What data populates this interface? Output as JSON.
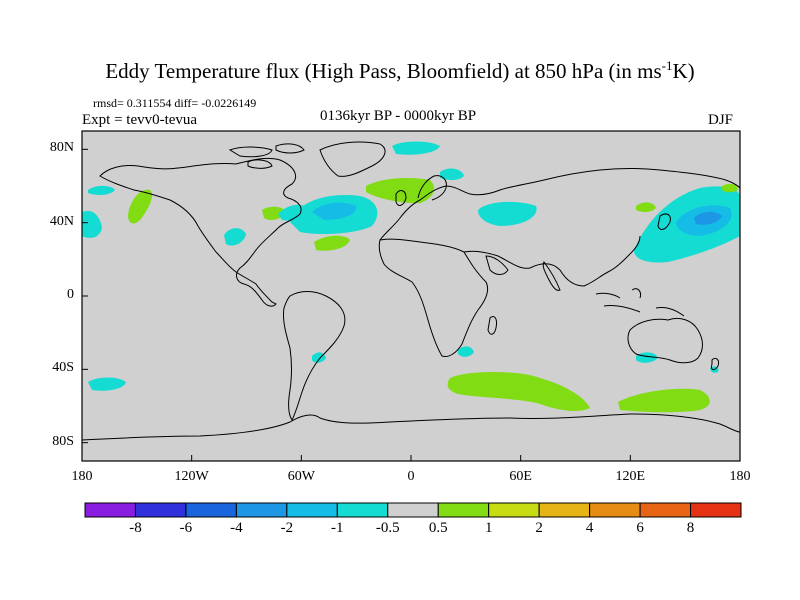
{
  "title_main": "Eddy Temperature flux (High Pass, Bloomfield) at 850 hPa (in ms",
  "title_sup": "-1",
  "title_end": "K)",
  "stats": "rmsd= 0.311554 diff= -0.0226149",
  "experiment": "Expt = tevv0-tevua",
  "period": "0136kyr BP - 0000kyr BP",
  "season": "DJF",
  "colors": {
    "land_sea_fill": "#d0d0d0",
    "coastline": "#000000"
  },
  "chart_data": {
    "type": "heatmap",
    "projection": "cylindrical equidistant",
    "x_ticks": [
      "180",
      "120W",
      "60W",
      "0",
      "60E",
      "120E",
      "180"
    ],
    "y_ticks": [
      "80N",
      "40N",
      "0",
      "40S",
      "80S"
    ],
    "xlim": [
      -180,
      180
    ],
    "ylim": [
      -90,
      90
    ],
    "colorbar": {
      "labels": [
        "-8",
        "-6",
        "-4",
        "-2",
        "-1",
        "-0.5",
        "0.5",
        "1",
        "2",
        "4",
        "6",
        "8"
      ],
      "colors": [
        "#8a1ee0",
        "#3030dc",
        "#1a64dc",
        "#1e96e6",
        "#14bce6",
        "#14dcd2",
        "#d0d0d0",
        "#82dc14",
        "#c8dc14",
        "#e6b414",
        "#e68c14",
        "#e66414",
        "#e63214"
      ]
    },
    "anomaly_regions": [
      {
        "lon": -168,
        "lat": 48,
        "value": "0.5 to 1"
      },
      {
        "lon": -175,
        "lat": 40,
        "value": "-0.5 to -1"
      },
      {
        "lon": -160,
        "lat": 57,
        "value": "-0.5 to -1"
      },
      {
        "lon": -175,
        "lat": -47,
        "value": "-0.5 to -1"
      },
      {
        "lon": -95,
        "lat": 45,
        "value": "0.5 to 1"
      },
      {
        "lon": -70,
        "lat": 48,
        "value": "-0.5 to -1"
      },
      {
        "lon": -90,
        "lat": 35,
        "value": "-0.5 to -1"
      },
      {
        "lon": -45,
        "lat": 45,
        "value": "-1 to -2"
      },
      {
        "lon": -35,
        "lat": 30,
        "value": "0.5 to 1"
      },
      {
        "lon": -5,
        "lat": 60,
        "value": "0.5 to 1"
      },
      {
        "lon": 0,
        "lat": 82,
        "value": "-0.5 to -1"
      },
      {
        "lon": 45,
        "lat": 45,
        "value": "-0.5 to -1"
      },
      {
        "lon": 50,
        "lat": -45,
        "value": "0.5 to 1"
      },
      {
        "lon": 130,
        "lat": -52,
        "value": "0.5 to 1"
      },
      {
        "lon": 145,
        "lat": 40,
        "value": "-2 to -4"
      },
      {
        "lon": 130,
        "lat": 45,
        "value": "0.5 to 1"
      }
    ]
  }
}
